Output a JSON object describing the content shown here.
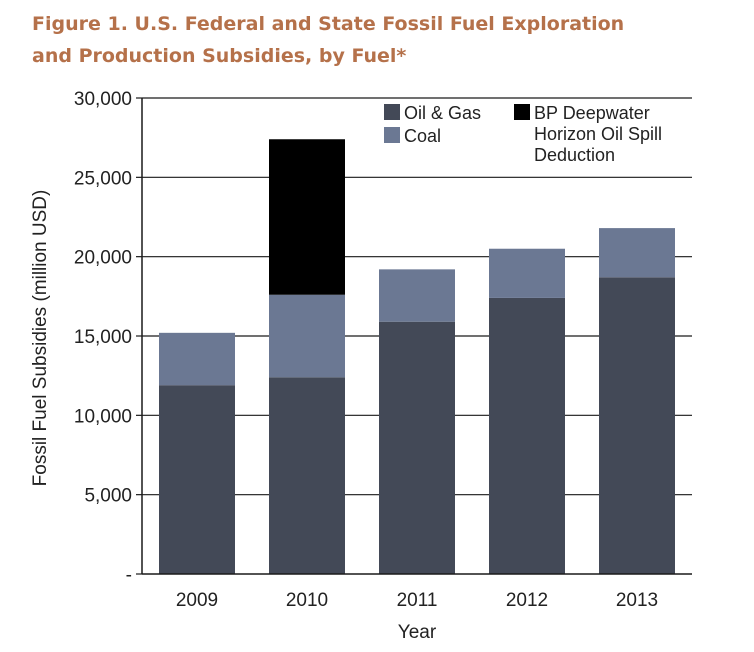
{
  "figure_title_line1": "Figure 1. U.S. Federal and State Fossil Fuel Exploration",
  "figure_title_line2": "and Production Subsidies, by Fuel*",
  "colors": {
    "title": "#b5714a",
    "oil_gas": "#434957",
    "coal": "#6b7893",
    "bp": "#000000"
  },
  "chart_data": {
    "type": "bar",
    "stacked": true,
    "title": "Figure 1. U.S. Federal and State Fossil Fuel Exploration and Production Subsidies, by Fuel*",
    "xlabel": "Year",
    "ylabel": "Fossil Fuel Subsidies (million USD)",
    "ylim": [
      0,
      30000
    ],
    "y_ticks": [
      0,
      5000,
      10000,
      15000,
      20000,
      25000,
      30000
    ],
    "y_tick_labels": [
      "-",
      "5,000",
      "10,000",
      "15,000",
      "20,000",
      "25,000",
      "30,000"
    ],
    "grid": true,
    "legend_position": "top-right",
    "categories": [
      "2009",
      "2010",
      "2011",
      "2012",
      "2013"
    ],
    "series": [
      {
        "name": "Oil & Gas",
        "color": "#434957",
        "values": [
          11900,
          12400,
          15900,
          17400,
          18700
        ]
      },
      {
        "name": "Coal",
        "color": "#6b7893",
        "values": [
          3300,
          5200,
          3300,
          3100,
          3100
        ]
      },
      {
        "name": "BP Deepwater Horizon Oil Spill Deduction",
        "legend_lines": [
          "BP Deepwater",
          "Horizon Oil Spill",
          "Deduction"
        ],
        "color": "#000000",
        "values": [
          0,
          9800,
          0,
          0,
          0
        ]
      }
    ]
  }
}
